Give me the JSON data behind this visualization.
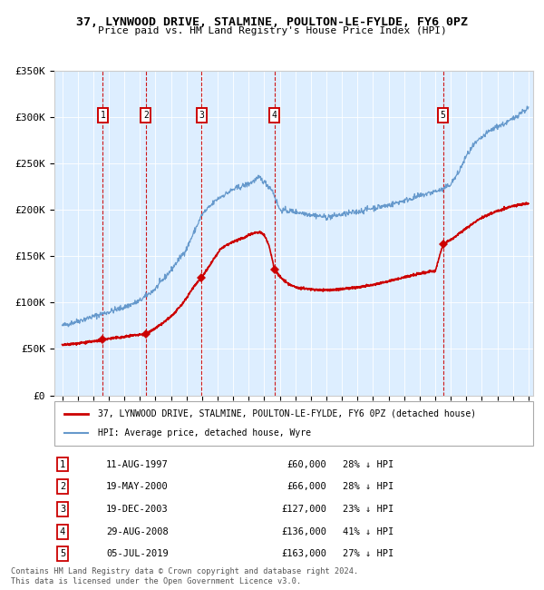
{
  "title": "37, LYNWOOD DRIVE, STALMINE, POULTON-LE-FYLDE, FY6 0PZ",
  "subtitle": "Price paid vs. HM Land Registry's House Price Index (HPI)",
  "legend_property": "37, LYNWOOD DRIVE, STALMINE, POULTON-LE-FYLDE, FY6 0PZ (detached house)",
  "legend_hpi": "HPI: Average price, detached house, Wyre",
  "transactions": [
    {
      "num": 1,
      "date": "11-AUG-1997",
      "year": 1997.61,
      "price": 60000,
      "pct": "28%"
    },
    {
      "num": 2,
      "date": "19-MAY-2000",
      "year": 2000.38,
      "price": 66000,
      "pct": "28%"
    },
    {
      "num": 3,
      "date": "19-DEC-2003",
      "year": 2003.96,
      "price": 127000,
      "pct": "23%"
    },
    {
      "num": 4,
      "date": "29-AUG-2008",
      "year": 2008.66,
      "price": 136000,
      "pct": "41%"
    },
    {
      "num": 5,
      "date": "05-JUL-2019",
      "year": 2019.51,
      "price": 163000,
      "pct": "27%"
    }
  ],
  "ylim": [
    0,
    350000
  ],
  "xlim": [
    1994.5,
    2025.3
  ],
  "yticks": [
    0,
    50000,
    100000,
    150000,
    200000,
    250000,
    300000,
    350000
  ],
  "ytick_labels": [
    "£0",
    "£50K",
    "£100K",
    "£150K",
    "£200K",
    "£250K",
    "£300K",
    "£350K"
  ],
  "xticks": [
    1995,
    1996,
    1997,
    1998,
    1999,
    2000,
    2001,
    2002,
    2003,
    2004,
    2005,
    2006,
    2007,
    2008,
    2009,
    2010,
    2011,
    2012,
    2013,
    2014,
    2015,
    2016,
    2017,
    2018,
    2019,
    2020,
    2021,
    2022,
    2023,
    2024,
    2025
  ],
  "property_color": "#cc0000",
  "hpi_color": "#6699cc",
  "background_color": "#ddeeff",
  "vline_color": "#cc0000",
  "box_color": "#cc0000",
  "footnote": "Contains HM Land Registry data © Crown copyright and database right 2024.\nThis data is licensed under the Open Government Licence v3.0."
}
